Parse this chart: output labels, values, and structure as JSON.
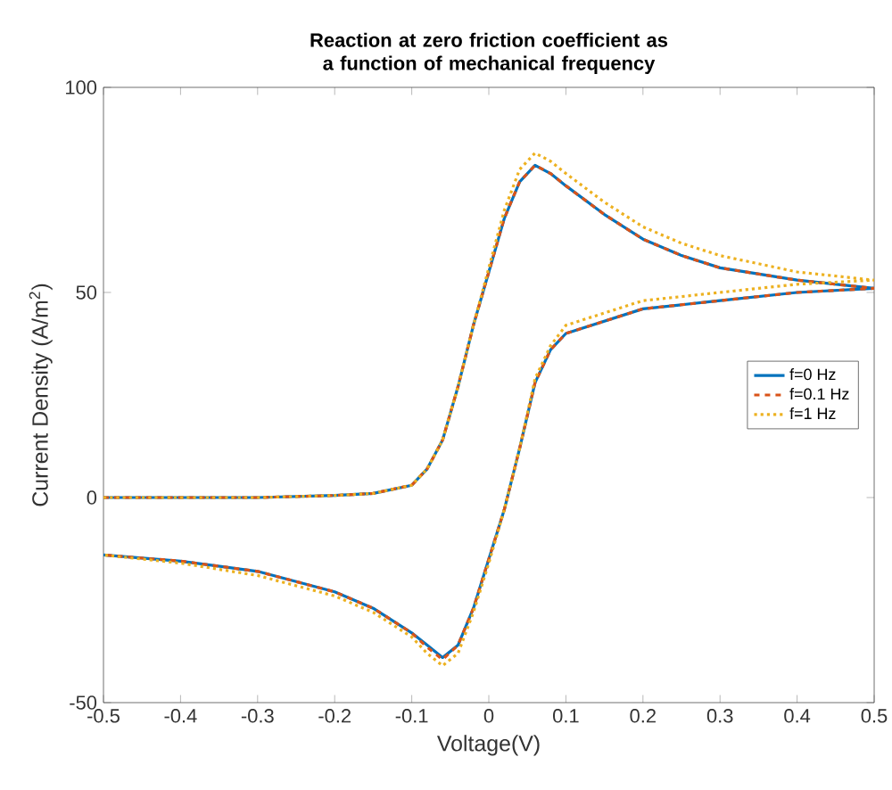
{
  "chart_data": {
    "type": "line",
    "title": "Reaction at zero friction coefficient as a function of mechanical frequency",
    "xlabel": "Voltage(V)",
    "ylabel": "Current Density (A/m$^{2}$)",
    "xlim": [
      -0.5,
      0.5
    ],
    "ylim": [
      -50,
      100
    ],
    "xticks": [
      -0.5,
      -0.4,
      -0.3,
      -0.2,
      -0.1,
      0,
      0.1,
      0.2,
      0.3,
      0.4,
      0.5
    ],
    "yticks": [
      -50,
      0,
      50,
      100
    ],
    "grid": false,
    "legend": "right",
    "series": [
      {
        "name": "f=0 Hz",
        "color": "#0072bd",
        "line_style": "solid",
        "x": [
          -0.5,
          -0.3,
          -0.2,
          -0.15,
          -0.1,
          -0.08,
          -0.06,
          -0.04,
          -0.02,
          0,
          0.02,
          0.04,
          0.06,
          0.08,
          0.1,
          0.15,
          0.2,
          0.25,
          0.3,
          0.4,
          0.5,
          0.4,
          0.3,
          0.2,
          0.1,
          0.08,
          0.06,
          0.04,
          0.02,
          0,
          -0.02,
          -0.04,
          -0.06,
          -0.08,
          -0.1,
          -0.15,
          -0.2,
          -0.3,
          -0.4,
          -0.5
        ],
        "values": [
          0,
          0,
          0.5,
          1,
          3,
          7,
          14,
          27,
          42,
          55,
          68,
          77,
          81,
          79,
          76,
          69,
          63,
          59,
          56,
          53,
          51,
          50,
          48,
          46,
          40,
          36,
          28,
          12,
          -3,
          -15,
          -27,
          -36,
          -39,
          -36,
          -33,
          -27,
          -23,
          -18,
          -15.5,
          -14
        ]
      },
      {
        "name": "f=0.1 Hz",
        "color": "#d95319",
        "line_style": "dashed",
        "x": [
          -0.5,
          -0.3,
          -0.2,
          -0.15,
          -0.1,
          -0.08,
          -0.06,
          -0.04,
          -0.02,
          0,
          0.02,
          0.04,
          0.06,
          0.08,
          0.1,
          0.15,
          0.2,
          0.25,
          0.3,
          0.4,
          0.5,
          0.4,
          0.3,
          0.2,
          0.1,
          0.08,
          0.06,
          0.04,
          0.02,
          0,
          -0.02,
          -0.04,
          -0.06,
          -0.08,
          -0.1,
          -0.15,
          -0.2,
          -0.3,
          -0.4,
          -0.5
        ],
        "values": [
          0,
          0,
          0.5,
          1,
          3,
          7,
          14,
          27,
          42,
          55,
          68,
          77,
          81,
          79,
          76,
          69,
          63,
          59,
          56,
          53,
          51,
          50,
          48,
          46,
          40,
          36,
          28,
          12,
          -3,
          -15,
          -27,
          -36,
          -39.5,
          -36.5,
          -33,
          -27,
          -23,
          -18,
          -15.5,
          -14
        ]
      },
      {
        "name": "f=1 Hz",
        "color": "#edb120",
        "line_style": "dotted",
        "x": [
          -0.5,
          -0.3,
          -0.2,
          -0.15,
          -0.1,
          -0.08,
          -0.06,
          -0.04,
          -0.02,
          0,
          0.02,
          0.04,
          0.06,
          0.08,
          0.1,
          0.15,
          0.2,
          0.25,
          0.3,
          0.4,
          0.5,
          0.4,
          0.3,
          0.2,
          0.1,
          0.08,
          0.06,
          0.04,
          0.02,
          0,
          -0.02,
          -0.04,
          -0.06,
          -0.08,
          -0.1,
          -0.15,
          -0.2,
          -0.3,
          -0.4,
          -0.5
        ],
        "values": [
          0,
          0,
          0.5,
          1,
          3,
          7,
          14,
          27,
          42,
          56,
          70,
          80,
          84,
          82,
          79,
          72,
          66,
          62,
          59,
          55,
          53,
          52,
          50,
          48,
          42,
          37,
          29,
          12,
          -3,
          -16,
          -28,
          -38,
          -41,
          -38,
          -34,
          -28,
          -24,
          -19,
          -16,
          -14
        ]
      }
    ]
  }
}
